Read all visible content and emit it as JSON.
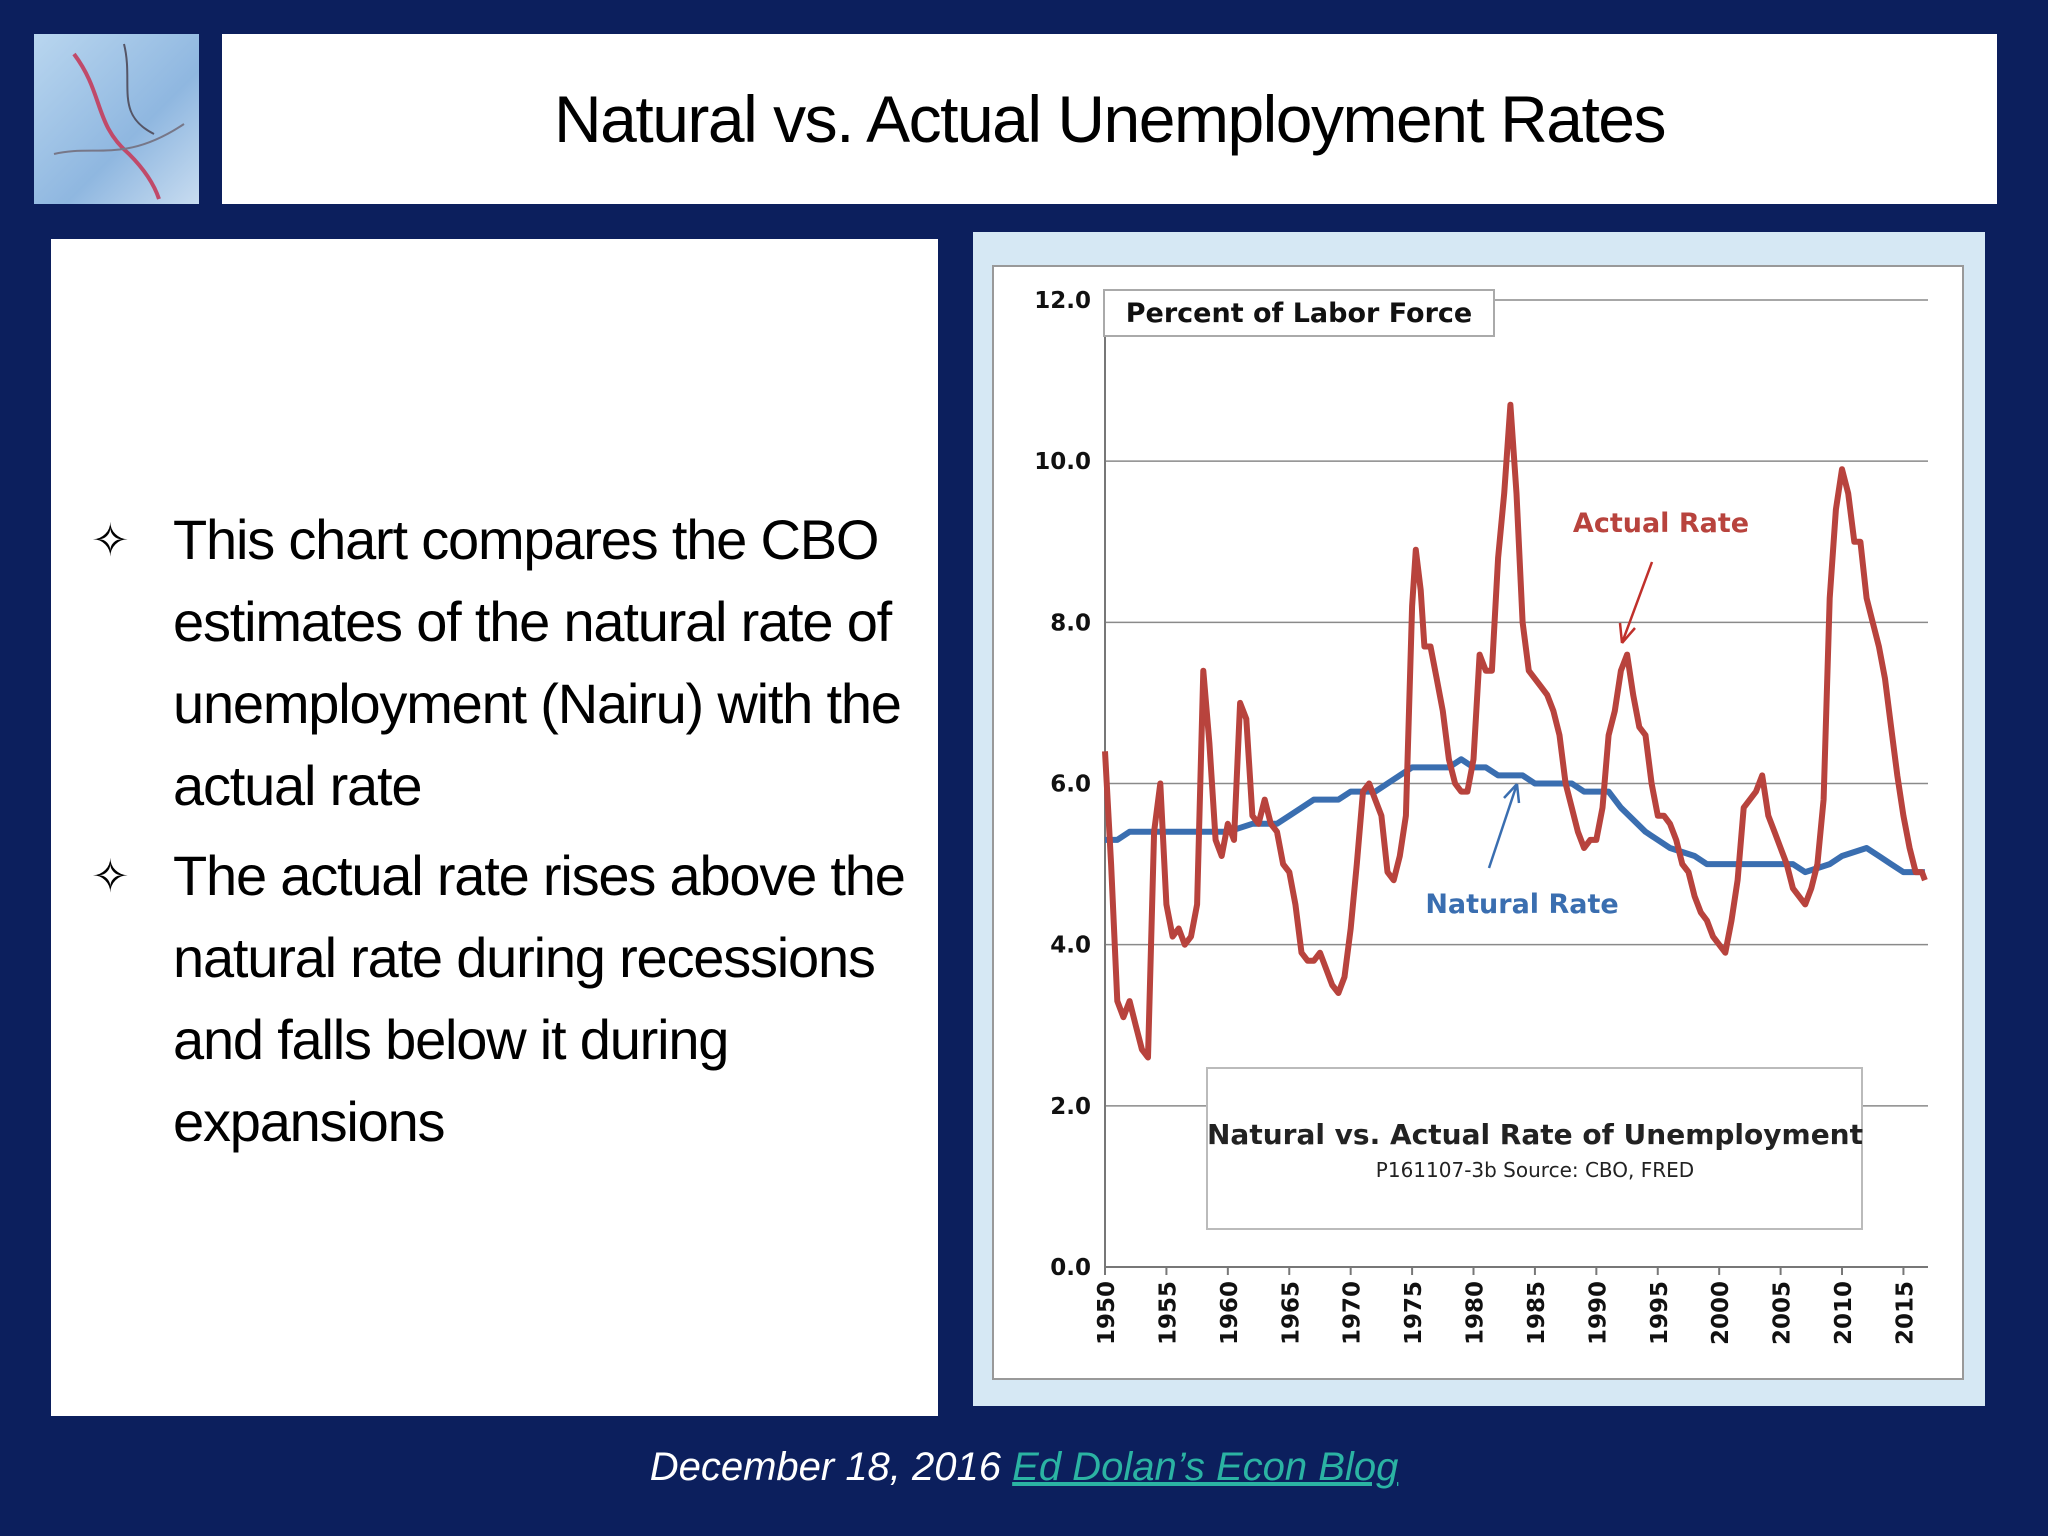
{
  "header": {
    "title": "Natural vs. Actual Unemployment Rates"
  },
  "bullets": [
    "This chart compares the CBO estimates of the natural rate of unemployment (Nairu) with the actual rate",
    "The actual rate rises above the natural rate during recessions and falls below it during expansions"
  ],
  "footer": {
    "date": "December 18, 2016",
    "link": "Ed Dolan’s Econ Blog"
  },
  "chart_data": {
    "type": "line",
    "title": "Natural vs. Actual Rate of Unemployment",
    "subtitle": "P161107-3b Source: CBO, FRED",
    "y_label": "Percent of Labor Force",
    "xlim": [
      1950,
      2017
    ],
    "xticks": [
      1950,
      1955,
      1960,
      1965,
      1970,
      1975,
      1980,
      1985,
      1990,
      1995,
      2000,
      2005,
      2010,
      2015
    ],
    "ylim": [
      0,
      12
    ],
    "yticks": [
      {
        "value": 0,
        "label": "0.0"
      },
      {
        "value": 2,
        "label": "2.0"
      },
      {
        "value": 4,
        "label": "4.0"
      },
      {
        "value": 6,
        "label": "6.0"
      },
      {
        "value": 8,
        "label": "8.0"
      },
      {
        "value": 10,
        "label": "10.0"
      },
      {
        "value": 12,
        "label": "12.0"
      }
    ],
    "grid": true,
    "series": [
      {
        "name": "Actual Rate",
        "color": "#b8433d",
        "x": [
          1950,
          1950.5,
          1951,
          1951.5,
          1952,
          1952.5,
          1953,
          1953.5,
          1954,
          1954.5,
          1955,
          1955.5,
          1956,
          1956.5,
          1957,
          1957.5,
          1958,
          1958.5,
          1959,
          1959.5,
          1960,
          1960.5,
          1961,
          1961.5,
          1962,
          1962.5,
          1963,
          1963.5,
          1964,
          1964.5,
          1965,
          1965.5,
          1966,
          1966.5,
          1967,
          1967.5,
          1968,
          1968.5,
          1969,
          1969.5,
          1970,
          1970.5,
          1971,
          1971.5,
          1972,
          1972.5,
          1973,
          1973.5,
          1974,
          1974.5,
          1975,
          1975.3,
          1975.7,
          1976,
          1976.5,
          1977,
          1977.5,
          1978,
          1978.5,
          1979,
          1979.5,
          1980,
          1980.5,
          1981,
          1981.5,
          1982,
          1982.5,
          1983,
          1983.5,
          1984,
          1984.5,
          1985,
          1985.5,
          1986,
          1986.5,
          1987,
          1987.5,
          1988,
          1988.5,
          1989,
          1989.5,
          1990,
          1990.5,
          1991,
          1991.5,
          1992,
          1992.5,
          1993,
          1993.5,
          1994,
          1994.5,
          1995,
          1995.5,
          1996,
          1996.5,
          1997,
          1997.5,
          1998,
          1998.5,
          1999,
          1999.5,
          2000,
          2000.5,
          2001,
          2001.5,
          2002,
          2002.5,
          2003,
          2003.5,
          2004,
          2004.5,
          2005,
          2005.5,
          2006,
          2006.5,
          2007,
          2007.5,
          2008,
          2008.5,
          2009,
          2009.5,
          2010,
          2010.5,
          2011,
          2011.5,
          2012,
          2012.5,
          2013,
          2013.5,
          2014,
          2014.5,
          2015,
          2015.5,
          2016,
          2016.5,
          2016.75
        ],
        "values": [
          6.4,
          5.0,
          3.3,
          3.1,
          3.3,
          3.0,
          2.7,
          2.6,
          5.4,
          6.0,
          4.5,
          4.1,
          4.2,
          4.0,
          4.1,
          4.5,
          7.4,
          6.5,
          5.3,
          5.1,
          5.5,
          5.3,
          7.0,
          6.8,
          5.6,
          5.5,
          5.8,
          5.5,
          5.4,
          5.0,
          4.9,
          4.5,
          3.9,
          3.8,
          3.8,
          3.9,
          3.7,
          3.5,
          3.4,
          3.6,
          4.2,
          5.0,
          5.9,
          6.0,
          5.8,
          5.6,
          4.9,
          4.8,
          5.1,
          5.6,
          8.2,
          8.9,
          8.4,
          7.7,
          7.7,
          7.3,
          6.9,
          6.3,
          6.0,
          5.9,
          5.9,
          6.3,
          7.6,
          7.4,
          7.4,
          8.8,
          9.6,
          10.7,
          9.6,
          8.0,
          7.4,
          7.3,
          7.2,
          7.1,
          6.9,
          6.6,
          6.0,
          5.7,
          5.4,
          5.2,
          5.3,
          5.3,
          5.7,
          6.6,
          6.9,
          7.4,
          7.6,
          7.1,
          6.7,
          6.6,
          6.0,
          5.6,
          5.6,
          5.5,
          5.3,
          5.0,
          4.9,
          4.6,
          4.4,
          4.3,
          4.1,
          4.0,
          3.9,
          4.3,
          4.8,
          5.7,
          5.8,
          5.9,
          6.1,
          5.6,
          5.4,
          5.2,
          5.0,
          4.7,
          4.6,
          4.5,
          4.7,
          5.0,
          5.8,
          8.3,
          9.4,
          9.9,
          9.6,
          9.0,
          9.0,
          8.3,
          8.0,
          7.7,
          7.3,
          6.7,
          6.1,
          5.6,
          5.2,
          4.9,
          4.9,
          4.8
        ]
      },
      {
        "name": "Natural Rate",
        "color": "#3a6eb0",
        "x": [
          1950,
          1951,
          1952,
          1955,
          1960,
          1962,
          1964,
          1965,
          1966,
          1967,
          1969,
          1970,
          1972,
          1973,
          1974,
          1975,
          1978,
          1979,
          1980,
          1981,
          1982,
          1984,
          1985,
          1988,
          1989,
          1991,
          1992,
          1994,
          1996,
          1998,
          1999,
          2004,
          2006,
          2007,
          2009,
          2010,
          2012,
          2013,
          2014,
          2015,
          2016.75
        ],
        "values": [
          5.3,
          5.3,
          5.4,
          5.4,
          5.4,
          5.5,
          5.5,
          5.6,
          5.7,
          5.8,
          5.8,
          5.9,
          5.9,
          6.0,
          6.1,
          6.2,
          6.2,
          6.3,
          6.2,
          6.2,
          6.1,
          6.1,
          6.0,
          6.0,
          5.9,
          5.9,
          5.7,
          5.4,
          5.2,
          5.1,
          5.0,
          5.0,
          5.0,
          4.9,
          5.0,
          5.1,
          5.2,
          5.1,
          5.0,
          4.9,
          4.9
        ]
      }
    ]
  }
}
